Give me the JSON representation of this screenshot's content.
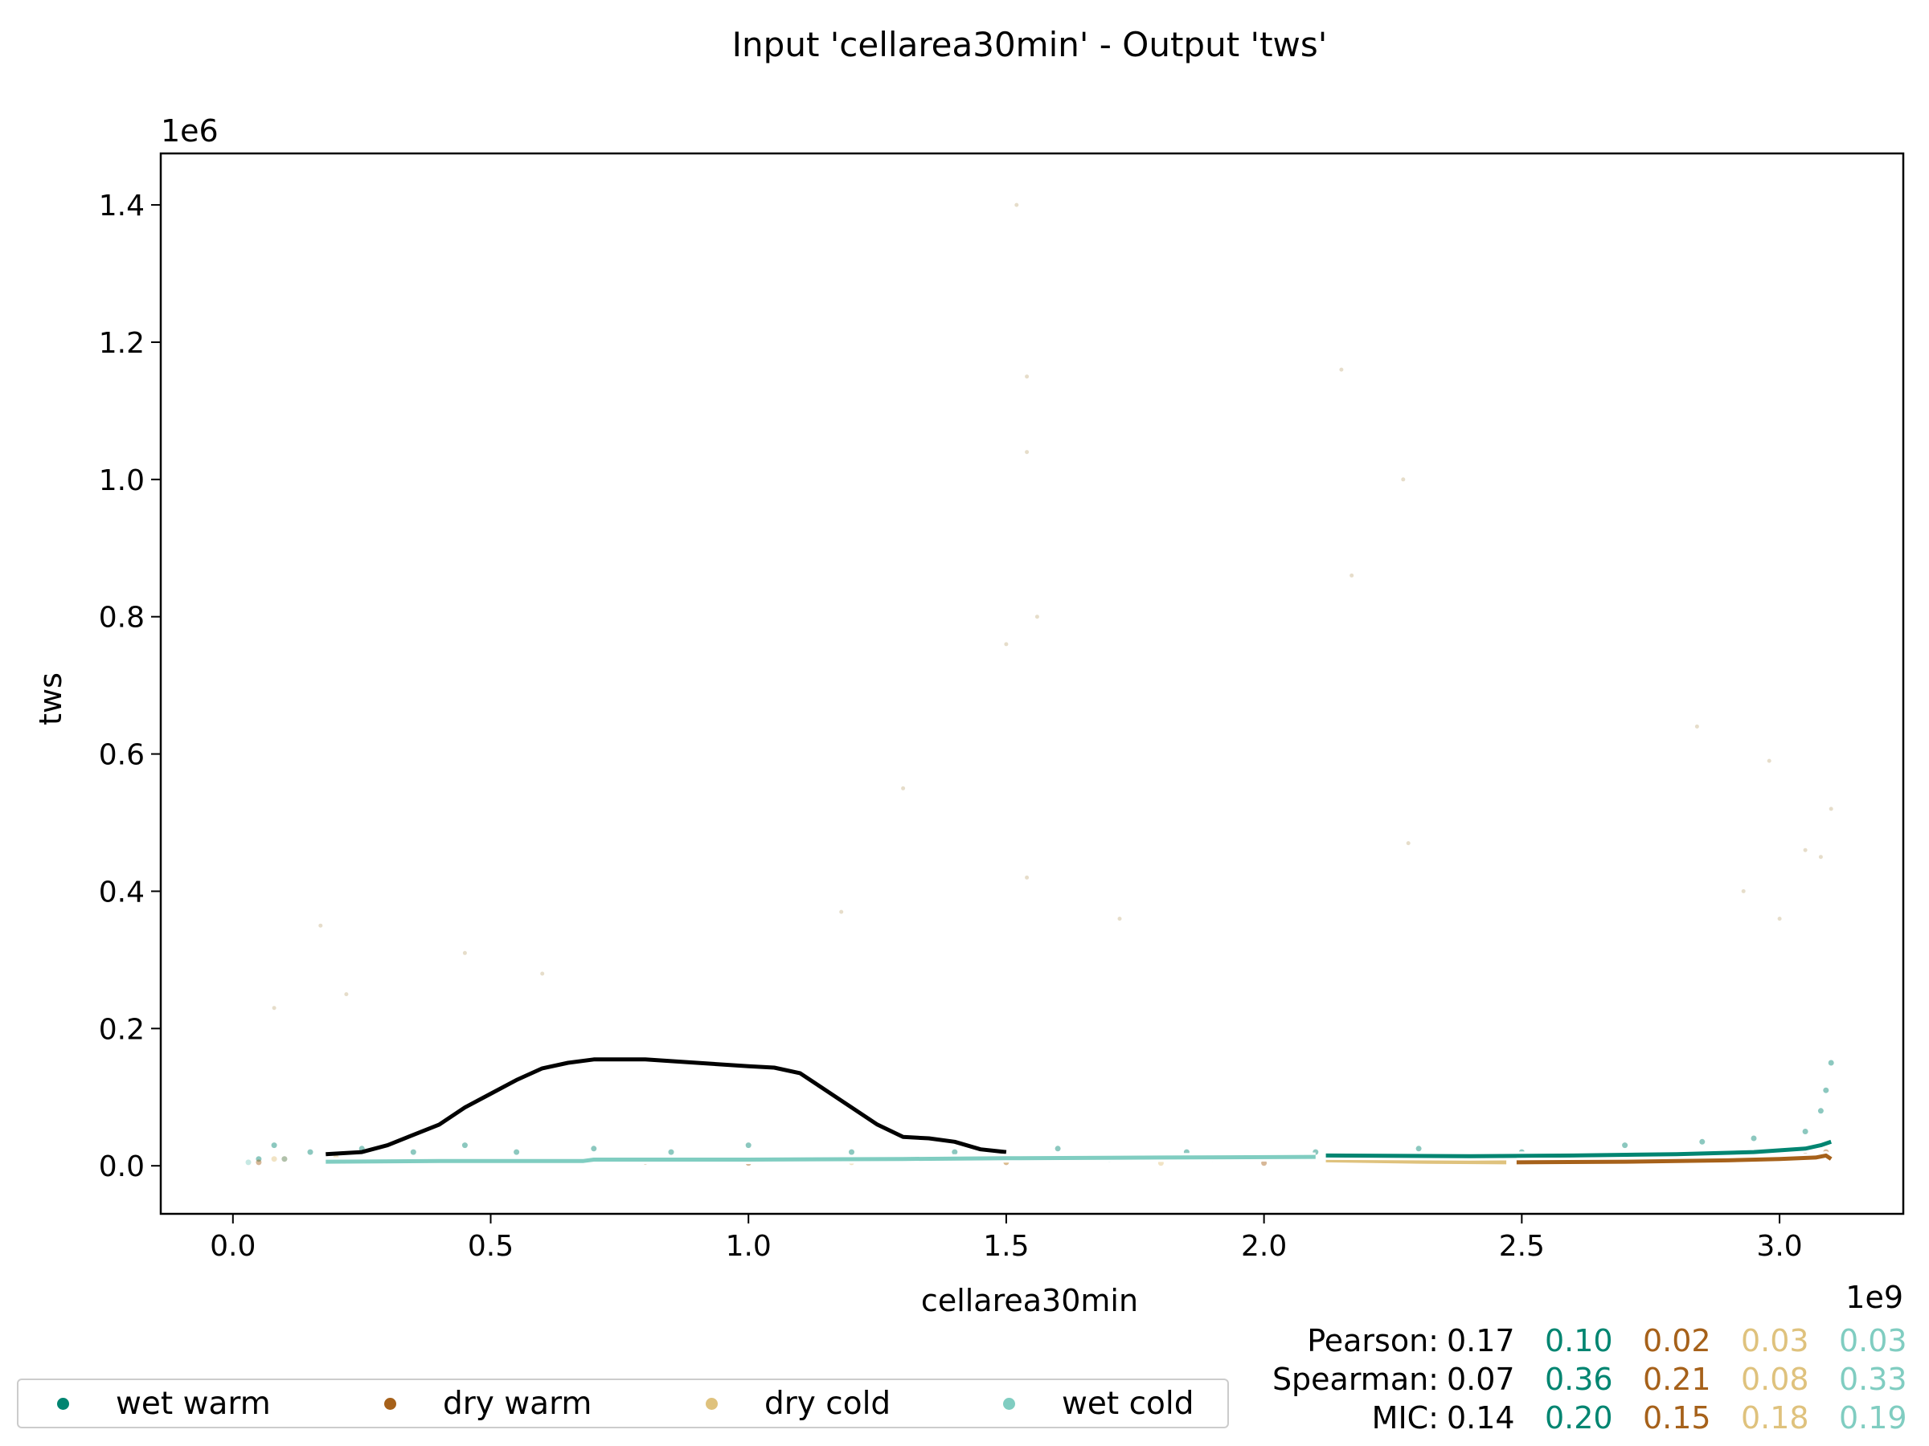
{
  "chart_data": {
    "type": "scatter",
    "title": "Input 'cellarea30min' - Output 'tws'",
    "xlabel": "cellarea30min",
    "ylabel": "tws",
    "x_offset_label": "1e9",
    "y_offset_label": "1e6",
    "xlim": [
      -0.14,
      3.24
    ],
    "ylim": [
      -0.07,
      1.475
    ],
    "x_ticks": [
      0.0,
      0.5,
      1.0,
      1.5,
      2.0,
      2.5,
      3.0
    ],
    "x_tick_labels": [
      "0.0",
      "0.5",
      "1.0",
      "1.5",
      "2.0",
      "2.5",
      "3.0"
    ],
    "y_ticks": [
      0.0,
      0.2,
      0.4,
      0.6,
      0.8,
      1.0,
      1.2,
      1.4
    ],
    "y_tick_labels": [
      "0.0",
      "0.2",
      "0.4",
      "0.6",
      "0.8",
      "1.0",
      "1.2",
      "1.4"
    ],
    "grid": false,
    "legend_position": "bottom-left, below axes",
    "colors": {
      "wet_warm": "#018571",
      "dry_warm": "#a6611a",
      "dry_cold": "#dfc27d",
      "wet_cold": "#80cdc1",
      "overall": "#000000"
    },
    "series": [
      {
        "name": "wet warm",
        "color": "#018571",
        "x": [
          0.05,
          0.08,
          0.15,
          0.25,
          0.35,
          0.45,
          0.55,
          0.7,
          0.85,
          1.0,
          1.2,
          1.4,
          1.6,
          1.85,
          2.1,
          2.3,
          2.5,
          2.7,
          2.85,
          2.95,
          3.05,
          3.08,
          3.09,
          3.1
        ],
        "y": [
          0.01,
          0.03,
          0.02,
          0.025,
          0.02,
          0.03,
          0.02,
          0.025,
          0.02,
          0.03,
          0.02,
          0.02,
          0.025,
          0.02,
          0.02,
          0.025,
          0.02,
          0.03,
          0.035,
          0.04,
          0.05,
          0.08,
          0.11,
          0.15
        ]
      },
      {
        "name": "dry warm",
        "color": "#a6611a",
        "x": [
          0.05,
          0.1,
          0.2,
          0.35,
          0.5,
          0.65,
          0.8,
          1.0,
          1.5,
          2.0,
          2.5,
          2.7,
          2.9,
          3.05,
          3.09
        ],
        "y": [
          0.005,
          0.01,
          0.008,
          0.006,
          0.007,
          0.005,
          0.006,
          0.004,
          0.005,
          0.004,
          0.006,
          0.01,
          0.012,
          0.015,
          0.02
        ]
      },
      {
        "name": "dry cold",
        "color": "#dfc27d",
        "x": [
          0.08,
          0.2,
          0.4,
          0.6,
          0.9,
          1.2,
          1.5,
          1.8,
          2.2,
          2.4,
          2.8,
          3.0
        ],
        "y": [
          0.01,
          0.012,
          0.008,
          0.006,
          0.007,
          0.005,
          0.006,
          0.004,
          0.005,
          0.004,
          0.006,
          0.01
        ]
      },
      {
        "name": "wet cold",
        "color": "#80cdc1",
        "x": [
          0.03,
          0.1,
          0.2,
          0.3,
          0.45,
          0.6,
          0.75,
          0.9,
          1.1,
          1.3,
          1.5,
          1.7,
          1.9,
          2.05
        ],
        "y": [
          0.005,
          0.01,
          0.008,
          0.007,
          0.009,
          0.006,
          0.01,
          0.008,
          0.01,
          0.009,
          0.011,
          0.009,
          0.01,
          0.011
        ]
      }
    ],
    "outliers": {
      "x": [
        0.17,
        0.22,
        0.45,
        0.6,
        1.3,
        1.52,
        1.54,
        1.54,
        1.54,
        1.56,
        1.5,
        1.72,
        2.15,
        2.17,
        2.27,
        2.28,
        2.84,
        2.93,
        2.98,
        3.0,
        3.05,
        3.08,
        3.1,
        0.08,
        1.18
      ],
      "y": [
        0.35,
        0.25,
        0.31,
        0.28,
        0.55,
        1.4,
        1.15,
        1.04,
        0.42,
        0.8,
        0.76,
        0.36,
        1.16,
        0.86,
        1.0,
        0.47,
        0.64,
        0.4,
        0.59,
        0.36,
        0.46,
        0.45,
        0.52,
        0.23,
        0.37
      ]
    },
    "lines": [
      {
        "name": "overall",
        "color": "#000000",
        "x": [
          0.18,
          0.25,
          0.3,
          0.35,
          0.4,
          0.45,
          0.5,
          0.55,
          0.6,
          0.65,
          0.7,
          0.8,
          0.9,
          1.0,
          1.05,
          1.1,
          1.15,
          1.2,
          1.25,
          1.3,
          1.35,
          1.4,
          1.45,
          1.5
        ],
        "y": [
          0.017,
          0.02,
          0.03,
          0.045,
          0.06,
          0.085,
          0.105,
          0.125,
          0.142,
          0.15,
          0.155,
          0.155,
          0.15,
          0.145,
          0.143,
          0.135,
          0.11,
          0.085,
          0.06,
          0.042,
          0.04,
          0.035,
          0.024,
          0.02
        ]
      },
      {
        "name": "wet cold",
        "color": "#80cdc1",
        "x": [
          0.18,
          0.4,
          0.68,
          0.7,
          1.0,
          1.3,
          1.5,
          1.8,
          2.1
        ],
        "y": [
          0.006,
          0.007,
          0.007,
          0.009,
          0.009,
          0.01,
          0.011,
          0.012,
          0.013
        ]
      },
      {
        "name": "dry cold",
        "color": "#dfc27d",
        "x": [
          2.12,
          2.3,
          2.47
        ],
        "y": [
          0.008,
          0.006,
          0.005
        ]
      },
      {
        "name": "wet warm",
        "color": "#018571",
        "x": [
          2.12,
          2.4,
          2.6,
          2.8,
          2.95,
          3.05,
          3.08,
          3.1
        ],
        "y": [
          0.015,
          0.014,
          0.015,
          0.017,
          0.02,
          0.025,
          0.03,
          0.035
        ]
      },
      {
        "name": "dry warm",
        "color": "#a6611a",
        "x": [
          2.49,
          2.7,
          2.9,
          3.0,
          3.07,
          3.09,
          3.1
        ],
        "y": [
          0.005,
          0.006,
          0.008,
          0.01,
          0.012,
          0.015,
          0.01
        ]
      }
    ],
    "stats": [
      {
        "label": "Pearson:",
        "values": [
          "0.17",
          "0.10",
          "0.02",
          "0.03",
          "0.03"
        ]
      },
      {
        "label": "Spearman:",
        "values": [
          "0.07",
          "0.36",
          "0.21",
          "0.08",
          "0.33"
        ]
      },
      {
        "label": "MIC:",
        "values": [
          "0.14",
          "0.20",
          "0.15",
          "0.18",
          "0.19"
        ]
      }
    ],
    "stat_colors": [
      "#000000",
      "#018571",
      "#a6611a",
      "#dfc27d",
      "#80cdc1"
    ]
  },
  "legend": [
    {
      "label": "wet warm",
      "color": "#018571"
    },
    {
      "label": "dry warm",
      "color": "#a6611a"
    },
    {
      "label": "dry cold",
      "color": "#dfc27d"
    },
    {
      "label": "wet cold",
      "color": "#80cdc1"
    }
  ]
}
